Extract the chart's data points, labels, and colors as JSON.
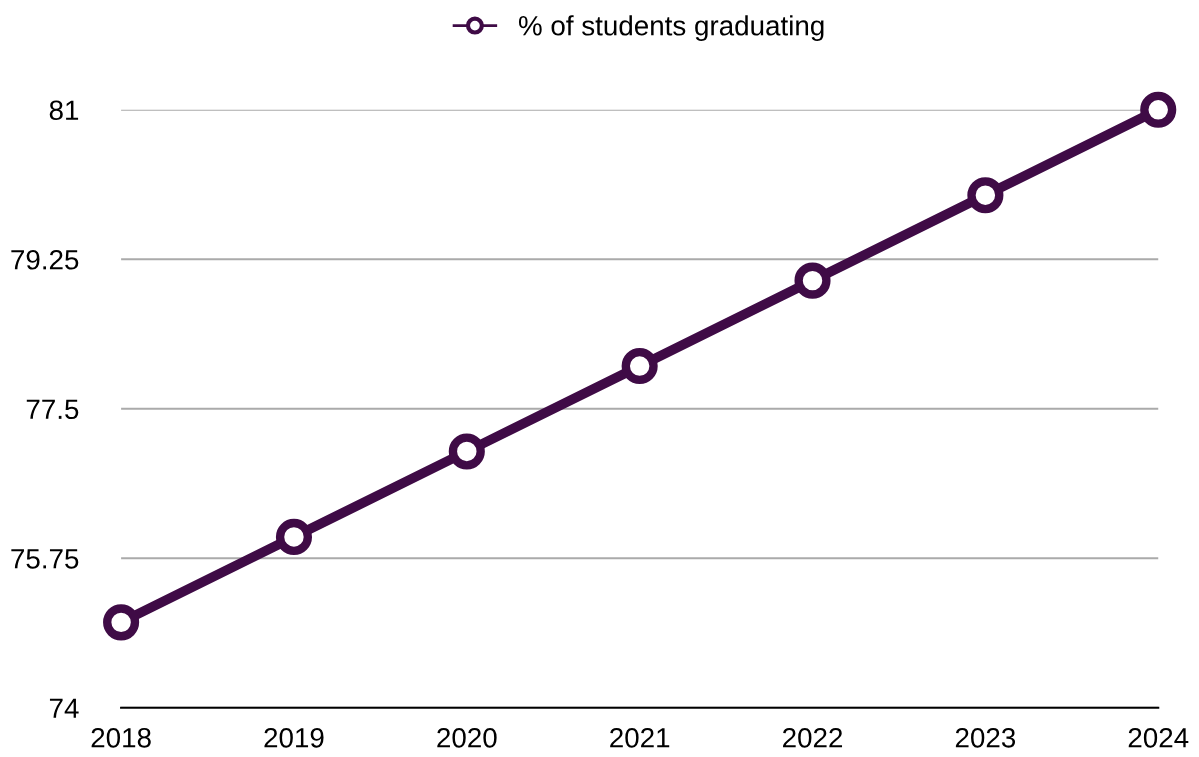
{
  "chart_data": {
    "type": "line",
    "categories": [
      "2018",
      "2019",
      "2020",
      "2021",
      "2022",
      "2023",
      "2024"
    ],
    "series": [
      {
        "name": "% of students graduating",
        "color": "#3f0b46",
        "values": [
          75,
          76,
          77,
          78,
          79,
          80,
          81
        ]
      }
    ],
    "ylim": [
      74,
      81
    ],
    "yticks": [
      74,
      75.75,
      77.5,
      79.25,
      81
    ],
    "grid": "y",
    "legend": "top",
    "marker": "circle",
    "line_style": "solid"
  }
}
